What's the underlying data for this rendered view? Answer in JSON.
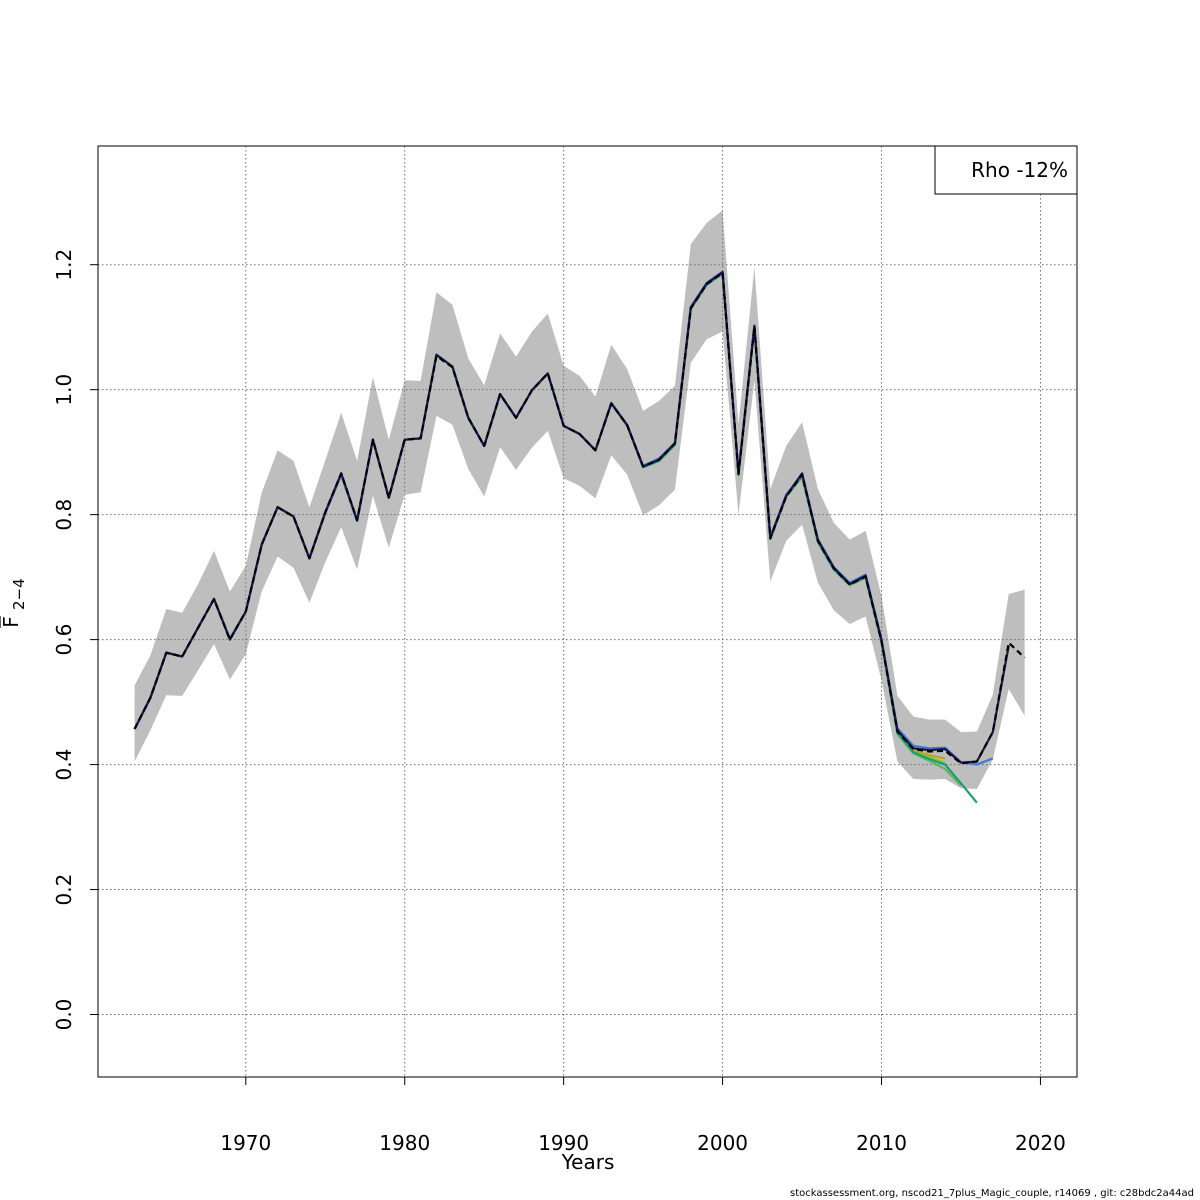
{
  "footer_text": "stockassessment.org, nscod21_7plus_Magic_couple, r14069 , git: c28bdc2a44ad",
  "legend": {
    "text": "Rho -12%"
  },
  "colors": {
    "ci_band": "#bebebe",
    "grid": "#6e6e6e",
    "series": [
      "#000000",
      "#20124d",
      "#3a7bd5",
      "#1b9e77",
      "#5cb85c",
      "#8bc34a",
      "#c8a400"
    ]
  },
  "chart_data": {
    "type": "line",
    "xlabel": "Years",
    "ylabel_main": "F",
    "ylabel_sub": "2−4",
    "xlim": [
      1960.7,
      2022.3
    ],
    "ylim": [
      -0.1,
      1.39
    ],
    "x_ticks": [
      1970,
      1980,
      1990,
      2000,
      2010,
      2020
    ],
    "x_tick_labels": [
      "1970",
      "1980",
      "1990",
      "2000",
      "2010",
      "2020"
    ],
    "y_ticks": [
      0.0,
      0.2,
      0.4,
      0.6,
      0.8,
      1.0,
      1.2
    ],
    "y_tick_labels": [
      "0.0",
      "0.2",
      "0.4",
      "0.6",
      "0.8",
      "1.0",
      "1.2"
    ],
    "grid": true,
    "legend_position": "top-right",
    "ci_band": {
      "x": [
        1963,
        1964,
        1965,
        1966,
        1967,
        1968,
        1969,
        1970,
        1971,
        1972,
        1973,
        1974,
        1975,
        1976,
        1977,
        1978,
        1979,
        1980,
        1981,
        1982,
        1983,
        1984,
        1985,
        1986,
        1987,
        1988,
        1989,
        1990,
        1991,
        1992,
        1993,
        1994,
        1995,
        1996,
        1997,
        1998,
        1999,
        2000,
        2001,
        2002,
        2003,
        2004,
        2005,
        2006,
        2007,
        2008,
        2009,
        2010,
        2011,
        2012,
        2013,
        2014,
        2015,
        2016,
        2017,
        2018,
        2019
      ],
      "lower": [
        0.405,
        0.455,
        0.511,
        0.51,
        0.551,
        0.593,
        0.536,
        0.577,
        0.677,
        0.733,
        0.715,
        0.659,
        0.724,
        0.78,
        0.712,
        0.83,
        0.747,
        0.832,
        0.836,
        0.958,
        0.944,
        0.873,
        0.829,
        0.908,
        0.872,
        0.907,
        0.934,
        0.858,
        0.846,
        0.826,
        0.895,
        0.864,
        0.799,
        0.815,
        0.84,
        1.043,
        1.081,
        1.093,
        0.8,
        1.015,
        0.693,
        0.758,
        0.784,
        0.691,
        0.647,
        0.625,
        0.637,
        0.535,
        0.405,
        0.377,
        0.376,
        0.377,
        0.362,
        0.361,
        0.408,
        0.521,
        0.478
      ],
      "upper": [
        0.527,
        0.575,
        0.649,
        0.643,
        0.689,
        0.742,
        0.677,
        0.718,
        0.835,
        0.903,
        0.886,
        0.812,
        0.887,
        0.963,
        0.886,
        1.02,
        0.92,
        1.015,
        1.014,
        1.156,
        1.136,
        1.05,
        1.007,
        1.09,
        1.053,
        1.093,
        1.122,
        1.038,
        1.022,
        0.989,
        1.072,
        1.033,
        0.966,
        0.982,
        1.006,
        1.233,
        1.267,
        1.287,
        0.945,
        1.196,
        0.841,
        0.91,
        0.948,
        0.841,
        0.787,
        0.76,
        0.774,
        0.67,
        0.51,
        0.477,
        0.472,
        0.472,
        0.452,
        0.453,
        0.512,
        0.673,
        0.68
      ]
    },
    "series": [
      {
        "x": [
          1963,
          1964,
          1965,
          1966,
          1967,
          1968,
          1969,
          1970,
          1971,
          1972,
          1973,
          1974,
          1975,
          1976,
          1977,
          1978,
          1979,
          1980,
          1981,
          1982,
          1983,
          1984,
          1985,
          1986,
          1987,
          1988,
          1989,
          1990,
          1991,
          1992,
          1993,
          1994,
          1995,
          1996,
          1997,
          1998,
          1999,
          2000,
          2001,
          2002,
          2003,
          2004,
          2005,
          2006,
          2007,
          2008,
          2009,
          2010,
          2011,
          2012,
          2013,
          2014,
          2015,
          2016,
          2017,
          2018,
          2019
        ],
        "values": [
          0.457,
          0.507,
          0.579,
          0.573,
          0.619,
          0.665,
          0.6,
          0.645,
          0.752,
          0.812,
          0.797,
          0.73,
          0.804,
          0.866,
          0.791,
          0.92,
          0.827,
          0.92,
          0.922,
          1.054,
          1.036,
          0.955,
          0.91,
          0.993,
          0.955,
          0.999,
          1.026,
          0.942,
          0.929,
          0.903,
          0.978,
          0.943,
          0.877,
          0.888,
          0.914,
          1.13,
          1.169,
          1.187,
          0.865,
          1.101,
          0.762,
          0.829,
          0.864,
          0.758,
          0.714,
          0.688,
          0.701,
          0.597,
          0.453,
          0.425,
          0.421,
          0.422,
          0.402,
          0.405,
          0.452,
          0.595,
          0.571
        ],
        "dashed": true
      },
      {
        "x": [
          1963,
          1964,
          1965,
          1966,
          1967,
          1968,
          1969,
          1970,
          1971,
          1972,
          1973,
          1974,
          1975,
          1976,
          1977,
          1978,
          1979,
          1980,
          1981,
          1982,
          1983,
          1984,
          1985,
          1986,
          1987,
          1988,
          1989,
          1990,
          1991,
          1992,
          1993,
          1994,
          1995,
          1996,
          1997,
          1998,
          1999,
          2000,
          2001,
          2002,
          2003,
          2004,
          2005,
          2006,
          2007,
          2008,
          2009,
          2010,
          2011,
          2012,
          2013,
          2014,
          2015,
          2016,
          2017,
          2018
        ],
        "values": [
          0.457,
          0.507,
          0.579,
          0.573,
          0.619,
          0.665,
          0.6,
          0.645,
          0.752,
          0.812,
          0.797,
          0.73,
          0.804,
          0.866,
          0.791,
          0.92,
          0.827,
          0.92,
          0.922,
          1.056,
          1.037,
          0.955,
          0.91,
          0.993,
          0.955,
          0.999,
          1.026,
          0.942,
          0.929,
          0.903,
          0.978,
          0.943,
          0.877,
          0.888,
          0.914,
          1.131,
          1.17,
          1.188,
          0.866,
          1.102,
          0.763,
          0.83,
          0.866,
          0.759,
          0.715,
          0.689,
          0.702,
          0.599,
          0.455,
          0.426,
          0.423,
          0.425,
          0.403,
          0.405,
          0.452,
          0.59
        ]
      },
      {
        "x": [
          1963,
          1964,
          1965,
          1966,
          1967,
          1968,
          1969,
          1970,
          1971,
          1972,
          1973,
          1974,
          1975,
          1976,
          1977,
          1978,
          1979,
          1980,
          1981,
          1982,
          1983,
          1984,
          1985,
          1986,
          1987,
          1988,
          1989,
          1990,
          1991,
          1992,
          1993,
          1994,
          1995,
          1996,
          1997,
          1998,
          1999,
          2000,
          2001,
          2002,
          2003,
          2004,
          2005,
          2006,
          2007,
          2008,
          2009,
          2010,
          2011,
          2012,
          2013,
          2014,
          2015,
          2016,
          2017
        ],
        "values": [
          0.457,
          0.507,
          0.579,
          0.573,
          0.619,
          0.665,
          0.601,
          0.645,
          0.752,
          0.812,
          0.797,
          0.73,
          0.803,
          0.864,
          0.79,
          0.92,
          0.827,
          0.92,
          0.922,
          1.056,
          1.037,
          0.955,
          0.91,
          0.993,
          0.955,
          0.999,
          1.026,
          0.942,
          0.929,
          0.903,
          0.979,
          0.944,
          0.878,
          0.89,
          0.915,
          1.133,
          1.171,
          1.189,
          0.867,
          1.103,
          0.764,
          0.832,
          0.864,
          0.761,
          0.716,
          0.691,
          0.704,
          0.6,
          0.458,
          0.43,
          0.426,
          0.427,
          0.404,
          0.4,
          0.41
        ]
      },
      {
        "x": [
          1963,
          1964,
          1965,
          1966,
          1967,
          1968,
          1969,
          1970,
          1971,
          1972,
          1973,
          1974,
          1975,
          1976,
          1977,
          1978,
          1979,
          1980,
          1981,
          1982,
          1983,
          1984,
          1985,
          1986,
          1987,
          1988,
          1989,
          1990,
          1991,
          1992,
          1993,
          1994,
          1995,
          1996,
          1997,
          1998,
          1999,
          2000,
          2001,
          2002,
          2003,
          2004,
          2005,
          2006,
          2007,
          2008,
          2009,
          2010,
          2011,
          2012,
          2013,
          2014,
          2015,
          2016
        ],
        "values": [
          0.457,
          0.507,
          0.579,
          0.573,
          0.619,
          0.665,
          0.601,
          0.645,
          0.752,
          0.812,
          0.797,
          0.73,
          0.803,
          0.864,
          0.79,
          0.92,
          0.827,
          0.92,
          0.922,
          1.056,
          1.037,
          0.955,
          0.91,
          0.993,
          0.955,
          0.999,
          1.026,
          0.942,
          0.929,
          0.903,
          0.978,
          0.943,
          0.876,
          0.886,
          0.912,
          1.13,
          1.168,
          1.186,
          0.864,
          1.1,
          0.761,
          0.829,
          0.861,
          0.757,
          0.712,
          0.688,
          0.7,
          0.597,
          0.451,
          0.42,
          0.409,
          0.4,
          0.37,
          0.339
        ]
      },
      {
        "x": [
          1963,
          1964,
          1965,
          1966,
          1967,
          1968,
          1969,
          1970,
          1971,
          1972,
          1973,
          1974,
          1975,
          1976,
          1977,
          1978,
          1979,
          1980,
          1981,
          1982,
          1983,
          1984,
          1985,
          1986,
          1987,
          1988,
          1989,
          1990,
          1991,
          1992,
          1993,
          1994,
          1995,
          1996,
          1997,
          1998,
          1999,
          2000,
          2001,
          2002,
          2003,
          2004,
          2005,
          2006,
          2007,
          2008,
          2009,
          2010,
          2011,
          2012,
          2013,
          2014,
          2015
        ],
        "values": [
          0.457,
          0.507,
          0.579,
          0.573,
          0.619,
          0.665,
          0.601,
          0.645,
          0.752,
          0.812,
          0.797,
          0.73,
          0.803,
          0.864,
          0.79,
          0.92,
          0.827,
          0.92,
          0.922,
          1.056,
          1.037,
          0.955,
          0.91,
          0.993,
          0.955,
          0.999,
          1.026,
          0.942,
          0.929,
          0.903,
          0.978,
          0.943,
          0.876,
          0.886,
          0.912,
          1.13,
          1.168,
          1.186,
          0.864,
          1.1,
          0.761,
          0.829,
          0.861,
          0.756,
          0.712,
          0.687,
          0.699,
          0.596,
          0.449,
          0.418,
          0.406,
          0.393,
          0.366
        ]
      },
      {
        "x": [
          1963,
          1964,
          1965,
          1966,
          1967,
          1968,
          1969,
          1970,
          1971,
          1972,
          1973,
          1974,
          1975,
          1976,
          1977,
          1978,
          1979,
          1980,
          1981,
          1982,
          1983,
          1984,
          1985,
          1986,
          1987,
          1988,
          1989,
          1990,
          1991,
          1992,
          1993,
          1994,
          1995,
          1996,
          1997,
          1998,
          1999,
          2000,
          2001,
          2002,
          2003,
          2004,
          2005,
          2006,
          2007,
          2008,
          2009,
          2010,
          2011,
          2012,
          2013,
          2014
        ],
        "values": [
          0.457,
          0.507,
          0.579,
          0.573,
          0.619,
          0.665,
          0.601,
          0.645,
          0.752,
          0.812,
          0.797,
          0.73,
          0.803,
          0.864,
          0.79,
          0.92,
          0.827,
          0.92,
          0.922,
          1.056,
          1.037,
          0.955,
          0.91,
          0.993,
          0.955,
          0.999,
          1.026,
          0.942,
          0.929,
          0.903,
          0.978,
          0.943,
          0.876,
          0.886,
          0.912,
          1.13,
          1.168,
          1.186,
          0.864,
          1.1,
          0.762,
          0.829,
          0.861,
          0.757,
          0.713,
          0.688,
          0.7,
          0.598,
          0.452,
          0.421,
          0.412,
          0.403
        ]
      },
      {
        "x": [
          1963,
          1964,
          1965,
          1966,
          1967,
          1968,
          1969,
          1970,
          1971,
          1972,
          1973,
          1974,
          1975,
          1976,
          1977,
          1978,
          1979,
          1980,
          1981,
          1982,
          1983,
          1984,
          1985,
          1986,
          1987,
          1988,
          1989,
          1990,
          1991,
          1992,
          1993,
          1994,
          1995,
          1996,
          1997,
          1998,
          1999,
          2000,
          2001,
          2002,
          2003,
          2004,
          2005,
          2006,
          2007,
          2008,
          2009,
          2010,
          2011,
          2012,
          2013,
          2014
        ],
        "values": [
          0.457,
          0.507,
          0.579,
          0.573,
          0.619,
          0.665,
          0.601,
          0.645,
          0.752,
          0.812,
          0.797,
          0.73,
          0.803,
          0.864,
          0.79,
          0.92,
          0.827,
          0.92,
          0.922,
          1.056,
          1.037,
          0.955,
          0.91,
          0.993,
          0.955,
          0.999,
          1.026,
          0.942,
          0.929,
          0.903,
          0.978,
          0.943,
          0.876,
          0.886,
          0.912,
          1.13,
          1.168,
          1.186,
          0.864,
          1.1,
          0.762,
          0.829,
          0.861,
          0.757,
          0.713,
          0.688,
          0.7,
          0.598,
          0.453,
          0.422,
          0.415,
          0.41
        ]
      }
    ]
  }
}
